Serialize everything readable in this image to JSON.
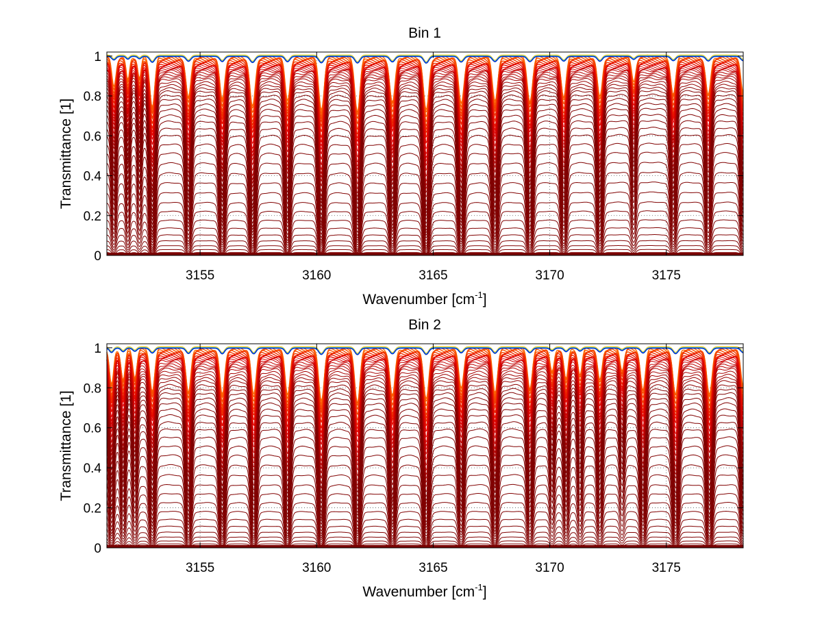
{
  "chart_data": [
    {
      "type": "line",
      "title": "Bin 1",
      "xlabel_base": "Wavenumber [cm",
      "xlabel_sup": "-1",
      "xlabel_end": "]",
      "ylabel": "Transmittance [1]",
      "xlim": [
        3151,
        3178.3
      ],
      "ylim": [
        0,
        1.02
      ],
      "xticks": [
        3155,
        3160,
        3165,
        3170,
        3175
      ],
      "yticks": [
        0,
        0.2,
        0.4,
        0.6,
        0.8,
        1
      ],
      "grid": true,
      "legend": "none",
      "line_count": 46,
      "line_tops": [
        0.998,
        0.994,
        0.99,
        0.985,
        0.98,
        0.975,
        0.97,
        0.965,
        0.96,
        0.955,
        0.95,
        0.945,
        0.94,
        0.935,
        0.93,
        0.92,
        0.91,
        0.9,
        0.89,
        0.875,
        0.86,
        0.845,
        0.83,
        0.81,
        0.79,
        0.765,
        0.74,
        0.71,
        0.68,
        0.645,
        0.61,
        0.565,
        0.52,
        0.47,
        0.42,
        0.37,
        0.32,
        0.27,
        0.225,
        0.18,
        0.14,
        0.105,
        0.075,
        0.05,
        0.03,
        0.015
      ],
      "absorption_lines": [
        {
          "x": 3151.3,
          "depth": 0.45,
          "width": 0.12
        },
        {
          "x": 3151.9,
          "depth": 0.35,
          "width": 0.1
        },
        {
          "x": 3152.4,
          "depth": 0.3,
          "width": 0.1
        },
        {
          "x": 3152.95,
          "depth": 0.75,
          "width": 0.14
        },
        {
          "x": 3154.5,
          "depth": 0.62,
          "width": 0.14
        },
        {
          "x": 3155.95,
          "depth": 0.66,
          "width": 0.14
        },
        {
          "x": 3157.25,
          "depth": 0.78,
          "width": 0.15
        },
        {
          "x": 3158.75,
          "depth": 0.68,
          "width": 0.14
        },
        {
          "x": 3160.2,
          "depth": 0.82,
          "width": 0.15
        },
        {
          "x": 3161.75,
          "depth": 0.84,
          "width": 0.15
        },
        {
          "x": 3163.25,
          "depth": 0.7,
          "width": 0.15
        },
        {
          "x": 3164.7,
          "depth": 0.85,
          "width": 0.15
        },
        {
          "x": 3166.2,
          "depth": 0.72,
          "width": 0.15
        },
        {
          "x": 3167.65,
          "depth": 0.66,
          "width": 0.15
        },
        {
          "x": 3169.15,
          "depth": 0.66,
          "width": 0.15
        },
        {
          "x": 3170.6,
          "depth": 0.6,
          "width": 0.14
        },
        {
          "x": 3172.15,
          "depth": 0.62,
          "width": 0.14
        },
        {
          "x": 3173.6,
          "depth": 0.38,
          "width": 0.12
        },
        {
          "x": 3175.3,
          "depth": 0.55,
          "width": 0.14
        },
        {
          "x": 3176.8,
          "depth": 0.58,
          "width": 0.14
        },
        {
          "x": 3178.3,
          "depth": 0.55,
          "width": 0.14
        }
      ]
    },
    {
      "type": "line",
      "title": "Bin 2",
      "xlabel_base": "Wavenumber [cm",
      "xlabel_sup": "-1",
      "xlabel_end": "]",
      "ylabel": "Transmittance [1]",
      "xlim": [
        3151,
        3178.3
      ],
      "ylim": [
        0,
        1.02
      ],
      "xticks": [
        3155,
        3160,
        3165,
        3170,
        3175
      ],
      "yticks": [
        0,
        0.2,
        0.4,
        0.6,
        0.8,
        1
      ],
      "grid": true,
      "legend": "none",
      "line_count": 46,
      "line_tops": [
        0.998,
        0.994,
        0.99,
        0.985,
        0.98,
        0.975,
        0.97,
        0.965,
        0.96,
        0.955,
        0.95,
        0.945,
        0.94,
        0.93,
        0.92,
        0.91,
        0.9,
        0.885,
        0.87,
        0.855,
        0.84,
        0.82,
        0.8,
        0.78,
        0.755,
        0.73,
        0.7,
        0.67,
        0.635,
        0.6,
        0.56,
        0.515,
        0.47,
        0.42,
        0.37,
        0.32,
        0.275,
        0.23,
        0.185,
        0.145,
        0.11,
        0.08,
        0.055,
        0.035,
        0.02,
        0.01
      ],
      "absorption_lines": [
        {
          "x": 3151.2,
          "depth": 0.55,
          "width": 0.12
        },
        {
          "x": 3151.7,
          "depth": 0.45,
          "width": 0.12
        },
        {
          "x": 3152.2,
          "depth": 0.4,
          "width": 0.12
        },
        {
          "x": 3152.95,
          "depth": 0.62,
          "width": 0.14
        },
        {
          "x": 3154.5,
          "depth": 0.68,
          "width": 0.14
        },
        {
          "x": 3155.95,
          "depth": 0.72,
          "width": 0.14
        },
        {
          "x": 3157.3,
          "depth": 0.72,
          "width": 0.14
        },
        {
          "x": 3158.75,
          "depth": 0.72,
          "width": 0.14
        },
        {
          "x": 3160.2,
          "depth": 0.8,
          "width": 0.15
        },
        {
          "x": 3161.75,
          "depth": 0.82,
          "width": 0.15
        },
        {
          "x": 3163.25,
          "depth": 0.72,
          "width": 0.15
        },
        {
          "x": 3164.7,
          "depth": 0.8,
          "width": 0.15
        },
        {
          "x": 3166.2,
          "depth": 0.6,
          "width": 0.14
        },
        {
          "x": 3167.65,
          "depth": 0.66,
          "width": 0.14
        },
        {
          "x": 3169.15,
          "depth": 0.58,
          "width": 0.14
        },
        {
          "x": 3170.1,
          "depth": 0.35,
          "width": 0.12
        },
        {
          "x": 3170.7,
          "depth": 0.45,
          "width": 0.12
        },
        {
          "x": 3171.3,
          "depth": 0.38,
          "width": 0.12
        },
        {
          "x": 3172.15,
          "depth": 0.48,
          "width": 0.13
        },
        {
          "x": 3173.1,
          "depth": 0.3,
          "width": 0.12
        },
        {
          "x": 3174.0,
          "depth": 0.62,
          "width": 0.14
        },
        {
          "x": 3175.4,
          "depth": 0.7,
          "width": 0.15
        },
        {
          "x": 3176.85,
          "depth": 0.72,
          "width": 0.15
        },
        {
          "x": 3178.3,
          "depth": 0.58,
          "width": 0.14
        }
      ]
    }
  ],
  "colors": {
    "lines_low": "#800000",
    "lines_mid": "#e00000",
    "lines_high": "#ff6a00",
    "top_band": [
      "#ffaa00",
      "#ffee00",
      "#33ccff",
      "#0033cc"
    ]
  }
}
